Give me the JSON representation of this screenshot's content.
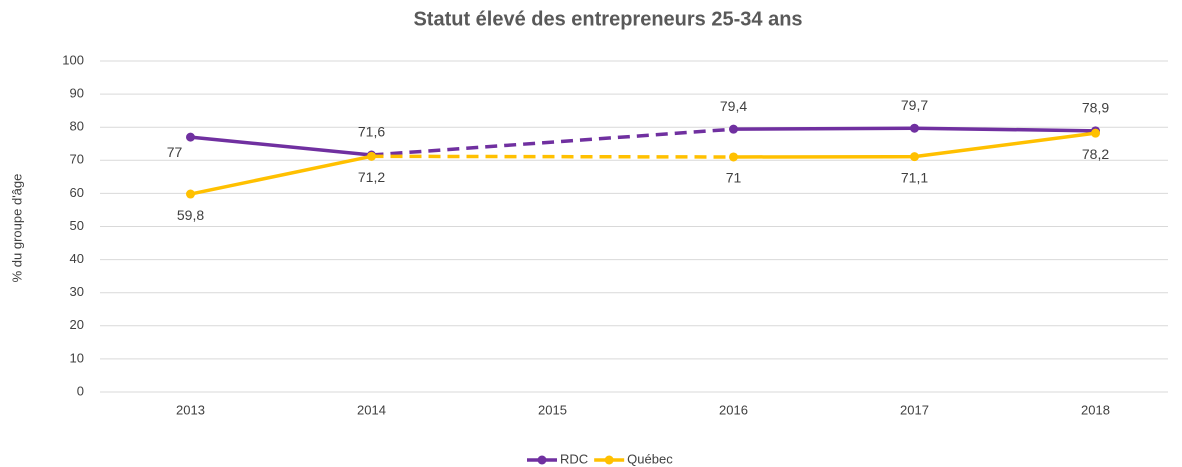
{
  "chart_data": {
    "type": "line",
    "title": "Statut élevé des entrepreneurs 25-34 ans",
    "y_label": "% du groupe d'âge",
    "categories": [
      "2013",
      "2014",
      "2015",
      "2016",
      "2017",
      "2018"
    ],
    "series": [
      {
        "name": "RDC",
        "color": "#7030a0",
        "values": [
          77,
          71.6,
          null,
          79.4,
          79.7,
          78.9
        ],
        "value_labels": [
          "77",
          "71,6",
          null,
          "79,4",
          "79,7",
          "78,9"
        ]
      },
      {
        "name": "Québec",
        "color": "#ffc000",
        "values": [
          59.8,
          71.2,
          null,
          71,
          71.1,
          78.2
        ],
        "value_labels": [
          "59,8",
          "71,2",
          null,
          "71",
          "71,1",
          "78,2"
        ]
      }
    ],
    "ylim": [
      0,
      100
    ],
    "yticks": [
      0,
      10,
      20,
      30,
      40,
      50,
      60,
      70,
      80,
      90,
      100
    ],
    "grid": true,
    "legend": "bottom"
  }
}
